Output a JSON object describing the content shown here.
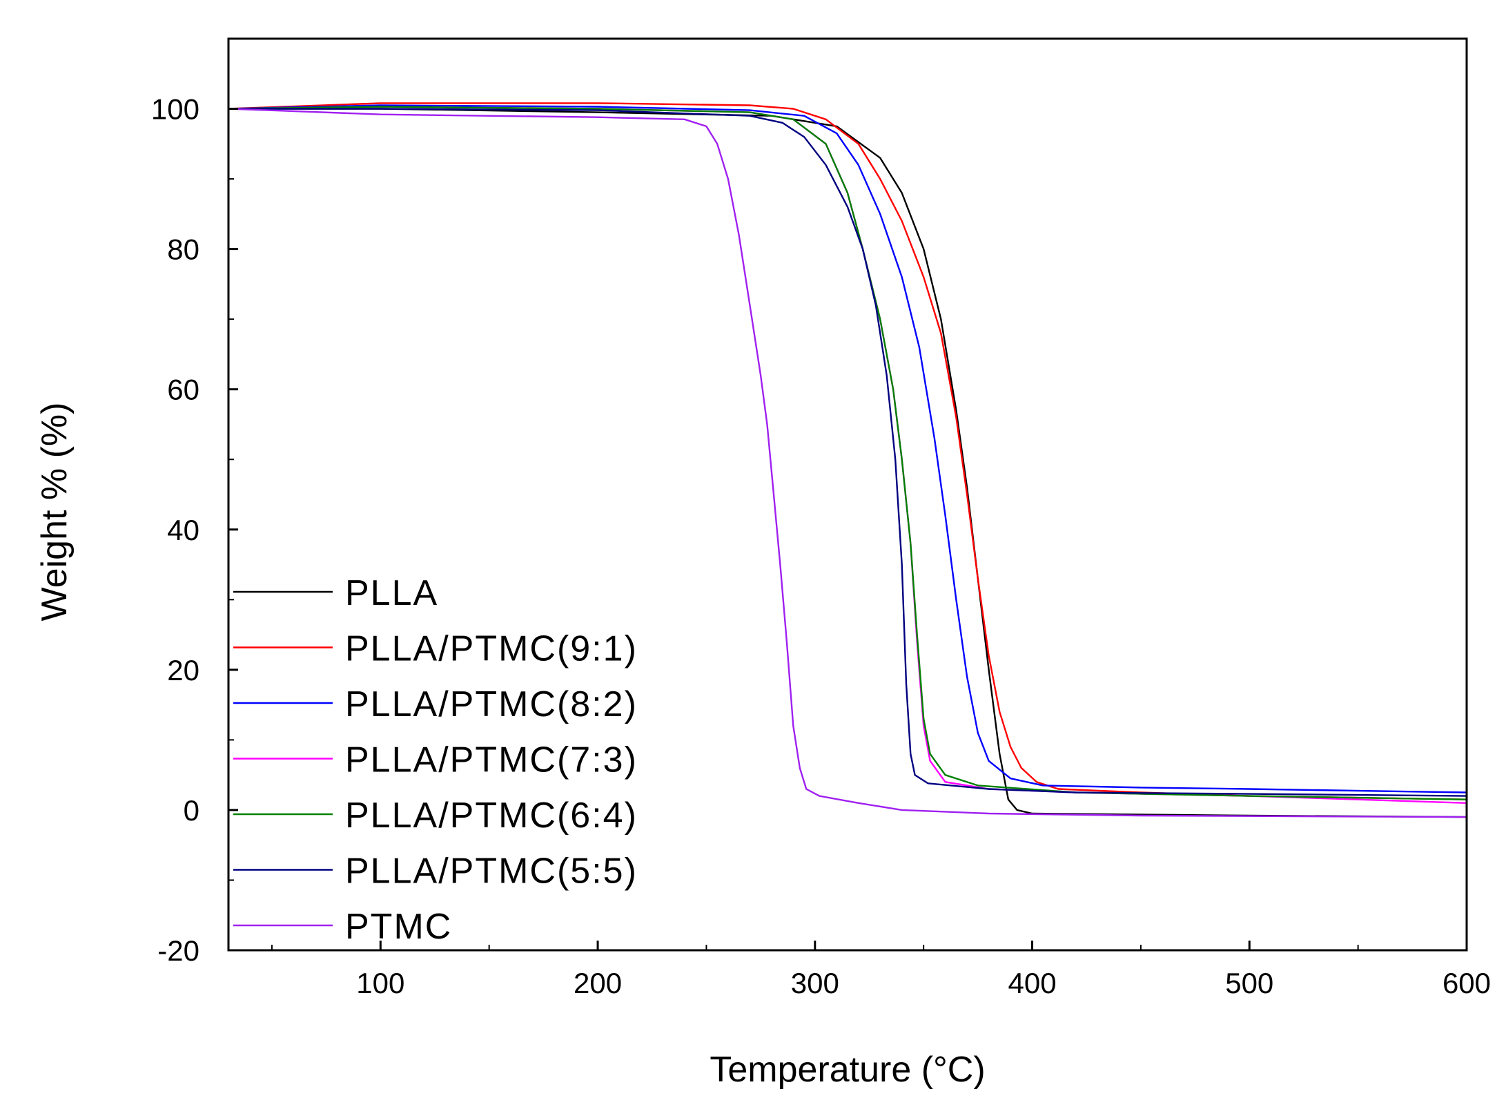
{
  "chart_data": {
    "type": "line",
    "title": "",
    "xlabel": "Temperature (°C)",
    "ylabel": "Weight % (%)",
    "xlim": [
      30,
      600
    ],
    "ylim": [
      -20,
      110
    ],
    "xticks": [
      100,
      200,
      300,
      400,
      500,
      600
    ],
    "yticks": [
      -20,
      0,
      20,
      40,
      60,
      80,
      100
    ],
    "grid": false,
    "legend_position": "bottom-left",
    "series": [
      {
        "name": "PLLA",
        "color": "#000000",
        "points": [
          [
            30,
            100
          ],
          [
            100,
            100
          ],
          [
            200,
            99.5
          ],
          [
            280,
            99
          ],
          [
            310,
            97.5
          ],
          [
            330,
            93
          ],
          [
            340,
            88
          ],
          [
            350,
            80
          ],
          [
            358,
            70
          ],
          [
            365,
            57
          ],
          [
            370,
            46
          ],
          [
            375,
            33
          ],
          [
            380,
            20
          ],
          [
            385,
            8
          ],
          [
            389,
            1.5
          ],
          [
            393,
            0
          ],
          [
            400,
            -0.5
          ],
          [
            500,
            -0.8
          ],
          [
            600,
            -1
          ]
        ]
      },
      {
        "name": "PLLA/PTMC(9:1)",
        "color": "#ff0000",
        "points": [
          [
            30,
            100
          ],
          [
            100,
            100.8
          ],
          [
            200,
            100.8
          ],
          [
            270,
            100.5
          ],
          [
            290,
            100
          ],
          [
            305,
            98.5
          ],
          [
            320,
            95
          ],
          [
            330,
            90
          ],
          [
            340,
            84
          ],
          [
            350,
            76
          ],
          [
            358,
            68
          ],
          [
            365,
            56
          ],
          [
            370,
            45
          ],
          [
            375,
            33
          ],
          [
            380,
            22
          ],
          [
            385,
            14
          ],
          [
            390,
            9
          ],
          [
            395,
            6
          ],
          [
            402,
            4
          ],
          [
            412,
            3
          ],
          [
            450,
            2.5
          ],
          [
            500,
            2
          ],
          [
            600,
            1.5
          ]
        ]
      },
      {
        "name": "PLLA/PTMC(8:2)",
        "color": "#0000ff",
        "points": [
          [
            30,
            100
          ],
          [
            100,
            100.5
          ],
          [
            200,
            100.3
          ],
          [
            270,
            99.8
          ],
          [
            295,
            99
          ],
          [
            310,
            96.5
          ],
          [
            320,
            92
          ],
          [
            330,
            85
          ],
          [
            340,
            76
          ],
          [
            348,
            66
          ],
          [
            355,
            53
          ],
          [
            360,
            42
          ],
          [
            365,
            30
          ],
          [
            370,
            19
          ],
          [
            375,
            11
          ],
          [
            380,
            7
          ],
          [
            390,
            4.5
          ],
          [
            405,
            3.5
          ],
          [
            450,
            3.2
          ],
          [
            500,
            3
          ],
          [
            600,
            2.5
          ]
        ]
      },
      {
        "name": "PLLA/PTMC(7:3)",
        "color": "#ff00ff",
        "points": [
          [
            30,
            100
          ],
          [
            100,
            100.3
          ],
          [
            200,
            100
          ],
          [
            270,
            99.5
          ],
          [
            290,
            98.5
          ],
          [
            305,
            95
          ],
          [
            315,
            88
          ],
          [
            322,
            80
          ],
          [
            330,
            70
          ],
          [
            336,
            60
          ],
          [
            340,
            50
          ],
          [
            344,
            38
          ],
          [
            347,
            24
          ],
          [
            350,
            12
          ],
          [
            353,
            7
          ],
          [
            360,
            4
          ],
          [
            380,
            3
          ],
          [
            420,
            2.5
          ],
          [
            500,
            2
          ],
          [
            600,
            1
          ]
        ]
      },
      {
        "name": "PLLA/PTMC(6:4)",
        "color": "#008000",
        "points": [
          [
            30,
            100
          ],
          [
            100,
            100.3
          ],
          [
            200,
            100
          ],
          [
            270,
            99.5
          ],
          [
            290,
            98.5
          ],
          [
            305,
            95
          ],
          [
            315,
            88
          ],
          [
            322,
            80
          ],
          [
            330,
            70
          ],
          [
            336,
            60
          ],
          [
            340,
            50
          ],
          [
            344,
            38
          ],
          [
            347,
            25
          ],
          [
            350,
            13
          ],
          [
            353,
            8
          ],
          [
            360,
            5
          ],
          [
            375,
            3.5
          ],
          [
            420,
            2.5
          ],
          [
            500,
            2
          ],
          [
            600,
            1.5
          ]
        ]
      },
      {
        "name": "PLLA/PTMC(5:5)",
        "color": "#000080",
        "points": [
          [
            30,
            100
          ],
          [
            100,
            100
          ],
          [
            200,
            99.8
          ],
          [
            270,
            99
          ],
          [
            285,
            98
          ],
          [
            295,
            96
          ],
          [
            305,
            92
          ],
          [
            315,
            86
          ],
          [
            322,
            80
          ],
          [
            328,
            72
          ],
          [
            333,
            62
          ],
          [
            337,
            50
          ],
          [
            340,
            35
          ],
          [
            342,
            18
          ],
          [
            344,
            8
          ],
          [
            346,
            5
          ],
          [
            352,
            3.8
          ],
          [
            380,
            3
          ],
          [
            420,
            2.5
          ],
          [
            500,
            2.3
          ],
          [
            600,
            2
          ]
        ]
      },
      {
        "name": "PTMC",
        "color": "#a020f0",
        "points": [
          [
            30,
            100
          ],
          [
            100,
            99.2
          ],
          [
            200,
            98.8
          ],
          [
            240,
            98.5
          ],
          [
            250,
            97.5
          ],
          [
            255,
            95
          ],
          [
            260,
            90
          ],
          [
            265,
            82
          ],
          [
            270,
            72
          ],
          [
            275,
            62
          ],
          [
            278,
            55
          ],
          [
            281,
            45
          ],
          [
            284,
            35
          ],
          [
            287,
            24
          ],
          [
            290,
            12
          ],
          [
            293,
            6
          ],
          [
            296,
            3
          ],
          [
            302,
            2
          ],
          [
            320,
            1
          ],
          [
            340,
            0
          ],
          [
            380,
            -0.5
          ],
          [
            450,
            -0.8
          ],
          [
            600,
            -1
          ]
        ]
      }
    ]
  }
}
